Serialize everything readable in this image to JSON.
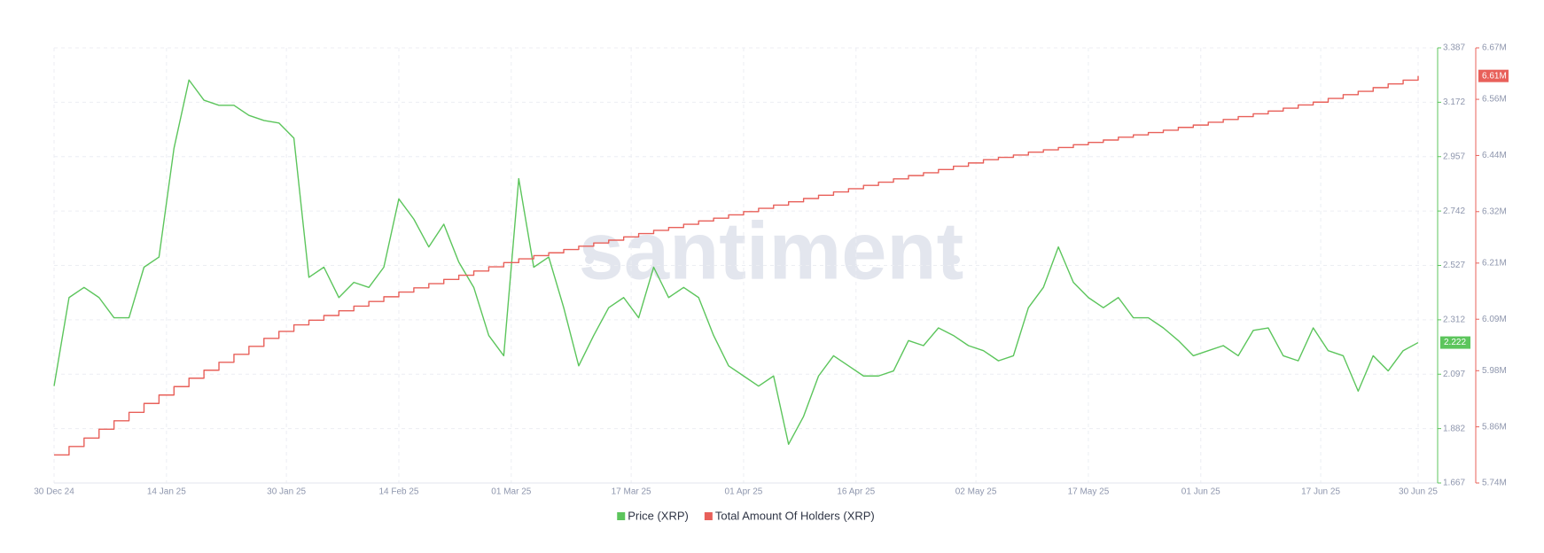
{
  "chart_data": {
    "type": "line",
    "watermark": "santiment",
    "grid": true,
    "legend": "bottom",
    "xlim": [
      "2024-12-30",
      "2025-06-30"
    ],
    "xticks": [
      {
        "value": "2024-12-30",
        "label": "30 Dec 24"
      },
      {
        "value": "2025-01-14",
        "label": "14 Jan 25"
      },
      {
        "value": "2025-01-30",
        "label": "30 Jan 25"
      },
      {
        "value": "2025-02-14",
        "label": "14 Feb 25"
      },
      {
        "value": "2025-03-01",
        "label": "01 Mar 25"
      },
      {
        "value": "2025-03-17",
        "label": "17 Mar 25"
      },
      {
        "value": "2025-04-01",
        "label": "01 Apr 25"
      },
      {
        "value": "2025-04-16",
        "label": "16 Apr 25"
      },
      {
        "value": "2025-05-02",
        "label": "02 May 25"
      },
      {
        "value": "2025-05-17",
        "label": "17 May 25"
      },
      {
        "value": "2025-06-01",
        "label": "01 Jun 25"
      },
      {
        "value": "2025-06-17",
        "label": "17 Jun 25"
      },
      {
        "value": "2025-06-30",
        "label": "30 Jun 25"
      }
    ],
    "ylim": [
      1.667,
      3.387
    ],
    "yticks": [
      1.667,
      1.882,
      2.097,
      2.312,
      2.527,
      2.742,
      2.957,
      3.172,
      3.387
    ],
    "y2lim": [
      5740000,
      6670000
    ],
    "y2ticks": [
      {
        "value": 5740000,
        "label": "5.74M"
      },
      {
        "value": 5860000,
        "label": "5.86M"
      },
      {
        "value": 5980000,
        "label": "5.98M"
      },
      {
        "value": 6090000,
        "label": "6.09M"
      },
      {
        "value": 6210000,
        "label": "6.21M"
      },
      {
        "value": 6320000,
        "label": "6.32M"
      },
      {
        "value": 6440000,
        "label": "6.44M"
      },
      {
        "value": 6560000,
        "label": "6.56M"
      },
      {
        "value": 6670000,
        "label": "6.67M"
      }
    ],
    "x": [
      "2024-12-30",
      "2025-01-01",
      "2025-01-03",
      "2025-01-05",
      "2025-01-07",
      "2025-01-09",
      "2025-01-11",
      "2025-01-13",
      "2025-01-15",
      "2025-01-17",
      "2025-01-19",
      "2025-01-21",
      "2025-01-23",
      "2025-01-25",
      "2025-01-27",
      "2025-01-29",
      "2025-01-31",
      "2025-02-02",
      "2025-02-04",
      "2025-02-06",
      "2025-02-08",
      "2025-02-10",
      "2025-02-12",
      "2025-02-14",
      "2025-02-16",
      "2025-02-18",
      "2025-02-20",
      "2025-02-22",
      "2025-02-24",
      "2025-02-26",
      "2025-02-28",
      "2025-03-02",
      "2025-03-04",
      "2025-03-06",
      "2025-03-08",
      "2025-03-10",
      "2025-03-12",
      "2025-03-14",
      "2025-03-16",
      "2025-03-18",
      "2025-03-20",
      "2025-03-22",
      "2025-03-24",
      "2025-03-26",
      "2025-03-28",
      "2025-03-30",
      "2025-04-01",
      "2025-04-03",
      "2025-04-05",
      "2025-04-07",
      "2025-04-09",
      "2025-04-11",
      "2025-04-13",
      "2025-04-15",
      "2025-04-17",
      "2025-04-19",
      "2025-04-21",
      "2025-04-23",
      "2025-04-25",
      "2025-04-27",
      "2025-04-29",
      "2025-05-01",
      "2025-05-03",
      "2025-05-05",
      "2025-05-07",
      "2025-05-09",
      "2025-05-11",
      "2025-05-13",
      "2025-05-15",
      "2025-05-17",
      "2025-05-19",
      "2025-05-21",
      "2025-05-23",
      "2025-05-25",
      "2025-05-27",
      "2025-05-29",
      "2025-05-31",
      "2025-06-02",
      "2025-06-04",
      "2025-06-06",
      "2025-06-08",
      "2025-06-10",
      "2025-06-12",
      "2025-06-14",
      "2025-06-16",
      "2025-06-18",
      "2025-06-20",
      "2025-06-22",
      "2025-06-24",
      "2025-06-26",
      "2025-06-28",
      "2025-06-30"
    ],
    "series": [
      {
        "name": "Price (XRP)",
        "color": "#5cc55c",
        "axis": "y",
        "last_value_label": "2.222",
        "values": [
          2.05,
          2.4,
          2.44,
          2.4,
          2.32,
          2.32,
          2.52,
          2.56,
          2.99,
          3.26,
          3.18,
          3.16,
          3.16,
          3.12,
          3.1,
          3.09,
          3.03,
          2.48,
          2.52,
          2.4,
          2.46,
          2.44,
          2.52,
          2.79,
          2.71,
          2.6,
          2.69,
          2.54,
          2.44,
          2.25,
          2.17,
          2.87,
          2.52,
          2.56,
          2.36,
          2.13,
          2.25,
          2.36,
          2.4,
          2.32,
          2.52,
          2.4,
          2.44,
          2.4,
          2.25,
          2.13,
          2.09,
          2.05,
          2.09,
          1.82,
          1.93,
          2.09,
          2.17,
          2.13,
          2.09,
          2.09,
          2.11,
          2.23,
          2.21,
          2.28,
          2.25,
          2.21,
          2.19,
          2.15,
          2.17,
          2.36,
          2.44,
          2.6,
          2.46,
          2.4,
          2.36,
          2.4,
          2.32,
          2.32,
          2.28,
          2.23,
          2.17,
          2.19,
          2.21,
          2.17,
          2.27,
          2.28,
          2.17,
          2.15,
          2.28,
          2.19,
          2.17,
          2.03,
          2.17,
          2.11,
          2.19,
          2.222
        ]
      },
      {
        "name": "Total Amount Of Holders (XRP)",
        "color": "#e8605a",
        "axis": "y2",
        "step": true,
        "last_value_label": "6.61M",
        "values": [
          5800000,
          5818000,
          5836000,
          5855000,
          5873000,
          5891000,
          5910000,
          5928000,
          5946000,
          5964000,
          5981000,
          5998000,
          6015000,
          6032000,
          6049000,
          6064000,
          6078000,
          6088000,
          6098000,
          6108000,
          6118000,
          6128000,
          6138000,
          6148000,
          6157000,
          6166000,
          6175000,
          6184000,
          6193000,
          6202000,
          6211000,
          6219000,
          6226000,
          6232000,
          6239000,
          6246000,
          6253000,
          6259000,
          6266000,
          6273000,
          6280000,
          6286000,
          6293000,
          6300000,
          6306000,
          6313000,
          6320000,
          6327000,
          6334000,
          6341000,
          6348000,
          6355000,
          6362000,
          6369000,
          6376000,
          6383000,
          6390000,
          6397000,
          6403000,
          6410000,
          6417000,
          6424000,
          6431000,
          6436000,
          6441000,
          6447000,
          6452000,
          6457000,
          6463000,
          6468000,
          6473000,
          6479000,
          6484000,
          6489000,
          6494000,
          6500000,
          6505000,
          6511000,
          6517000,
          6523000,
          6529000,
          6535000,
          6541000,
          6548000,
          6554000,
          6562000,
          6570000,
          6577000,
          6585000,
          6593000,
          6601000,
          6610000
        ]
      }
    ]
  }
}
